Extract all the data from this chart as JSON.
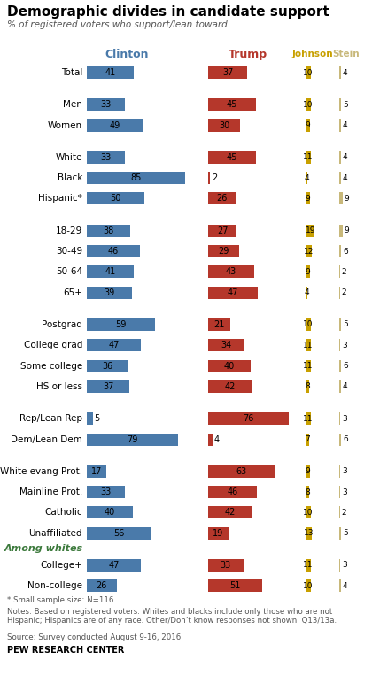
{
  "title": "Demographic divides in candidate support",
  "subtitle": "% of registered voters who support/lean toward ...",
  "categories": [
    "Total",
    "Men",
    "Women",
    "White",
    "Black",
    "Hispanic*",
    "18-29",
    "30-49",
    "50-64",
    "65+",
    "Postgrad",
    "College grad",
    "Some college",
    "HS or less",
    "Rep/Lean Rep",
    "Dem/Lean Dem",
    "White evang Prot.",
    "Mainline Prot.",
    "Catholic",
    "Unaffiliated",
    "College+",
    "Non-college"
  ],
  "clinton": [
    41,
    33,
    49,
    33,
    85,
    50,
    38,
    46,
    41,
    39,
    59,
    47,
    36,
    37,
    5,
    79,
    17,
    33,
    40,
    56,
    47,
    26
  ],
  "trump": [
    37,
    45,
    30,
    45,
    2,
    26,
    27,
    29,
    43,
    47,
    21,
    34,
    40,
    42,
    76,
    4,
    63,
    46,
    42,
    19,
    33,
    51
  ],
  "johnson": [
    10,
    10,
    9,
    11,
    4,
    9,
    19,
    12,
    9,
    4,
    10,
    11,
    11,
    8,
    11,
    7,
    9,
    8,
    10,
    13,
    11,
    10
  ],
  "stein": [
    4,
    5,
    4,
    4,
    4,
    9,
    9,
    6,
    2,
    2,
    5,
    3,
    6,
    4,
    3,
    6,
    3,
    3,
    2,
    5,
    3,
    4
  ],
  "clinton_color": "#4a7aaa",
  "trump_color": "#b5372b",
  "johnson_color": "#c8a000",
  "stein_color": "#c8b87a",
  "footnote1": "* Small sample size: N=116.",
  "footnote2": "Notes: Based on registered voters. Whites and blacks include only those who are not\nHispanic; Hispanics are of any race. Other/Don’t know responses not shown. Q13/13a.",
  "footnote3": "Source: Survey conducted August 9-16, 2016.",
  "source": "PEW RESEARCH CENTER",
  "bg_color": "#ffffff",
  "group_breaks_after": [
    0,
    2,
    5,
    9,
    13,
    15,
    19
  ],
  "among_whites_idx": 20
}
